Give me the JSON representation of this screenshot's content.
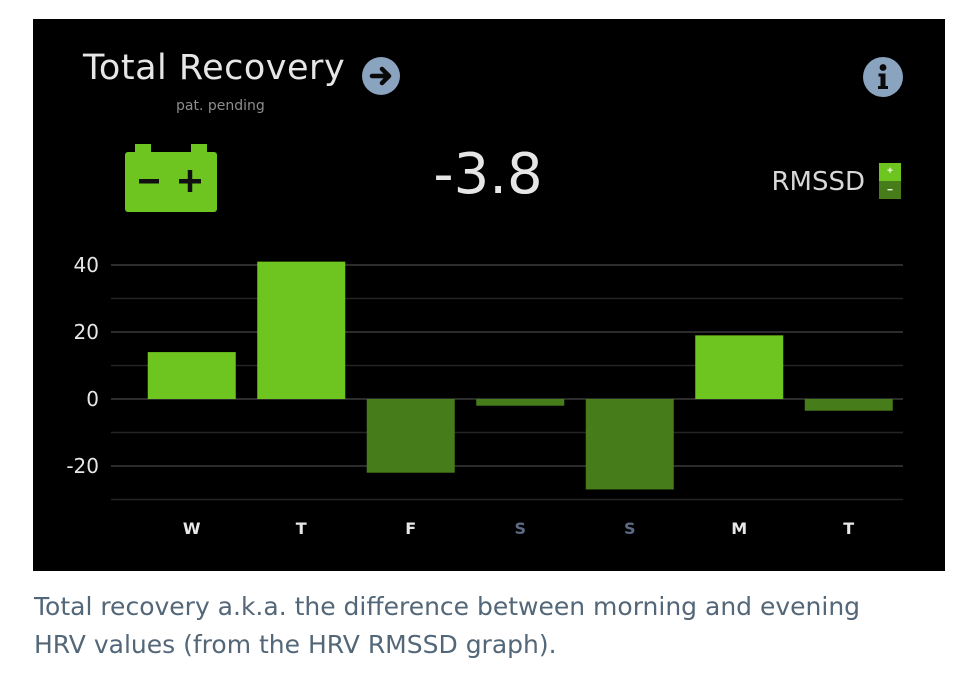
{
  "header": {
    "title": "Total Recovery",
    "subtitle": "pat. pending"
  },
  "summary": {
    "value": "-3.8",
    "metric": "RMSSD"
  },
  "colors": {
    "positive_bar": "#6fc51f",
    "negative_bar": "#467d1a",
    "weekday_label": "#e8e8e8",
    "weekend_label": "#5d6a86",
    "icon_button": "#8aa3bf",
    "battery": "#6fc51f"
  },
  "icons": {
    "arrow": "arrow-right-icon",
    "info": "info-icon",
    "battery": "battery-icon"
  },
  "chart_data": {
    "type": "bar",
    "categories": [
      "W",
      "T",
      "F",
      "S",
      "S",
      "M",
      "T"
    ],
    "values": [
      14,
      41,
      -22,
      -2,
      -27,
      19,
      -3.5
    ],
    "weekend": [
      false,
      false,
      false,
      true,
      true,
      false,
      false
    ],
    "yticks": [
      40,
      20,
      0,
      -20
    ],
    "ylim": [
      -30,
      40
    ],
    "grid": true,
    "legend": "none"
  },
  "caption": {
    "line1": "Total recovery a.k.a. the difference between morning and evening",
    "line2": "HRV values (from the HRV RMSSD graph)."
  }
}
